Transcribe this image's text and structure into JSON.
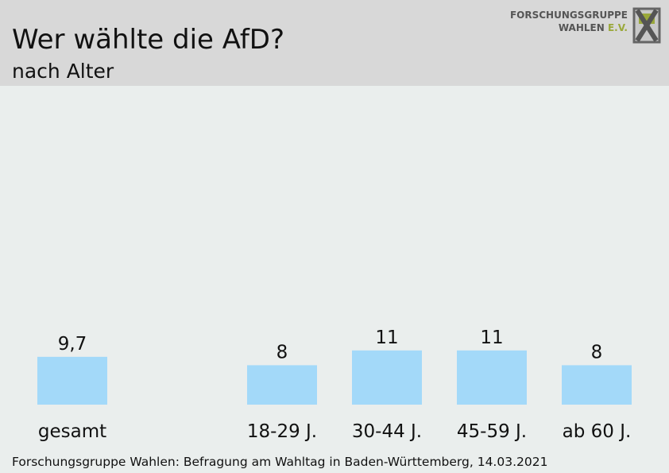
{
  "header": {
    "title": "Wer wählte die AfD?",
    "subtitle": "nach Alter",
    "logo_line1": "FORSCHUNGSGRUPPE",
    "logo_line2": "WAHLEN",
    "logo_ev": "E.V."
  },
  "chart_data": {
    "type": "bar",
    "title": "Wer wählte die AfD?",
    "subtitle": "nach Alter",
    "categories": [
      "gesamt",
      "18-29 J.",
      "30-44 J.",
      "45-59 J.",
      "ab 60 J."
    ],
    "values": [
      9.7,
      8,
      11,
      11,
      8
    ],
    "value_labels": [
      "9,7",
      "8",
      "11",
      "11",
      "8"
    ],
    "bar_color": "#a3d9f9",
    "grid": false,
    "legend": "none"
  },
  "footer": {
    "source": "Forschungsgruppe Wahlen: Befragung am Wahltag in Baden-Württemberg, 14.03.2021"
  },
  "colors": {
    "background": "#eaeeed",
    "header": "#d8d8d8",
    "bar": "#a3d9f9",
    "logo_accent": "#9aa83a"
  }
}
